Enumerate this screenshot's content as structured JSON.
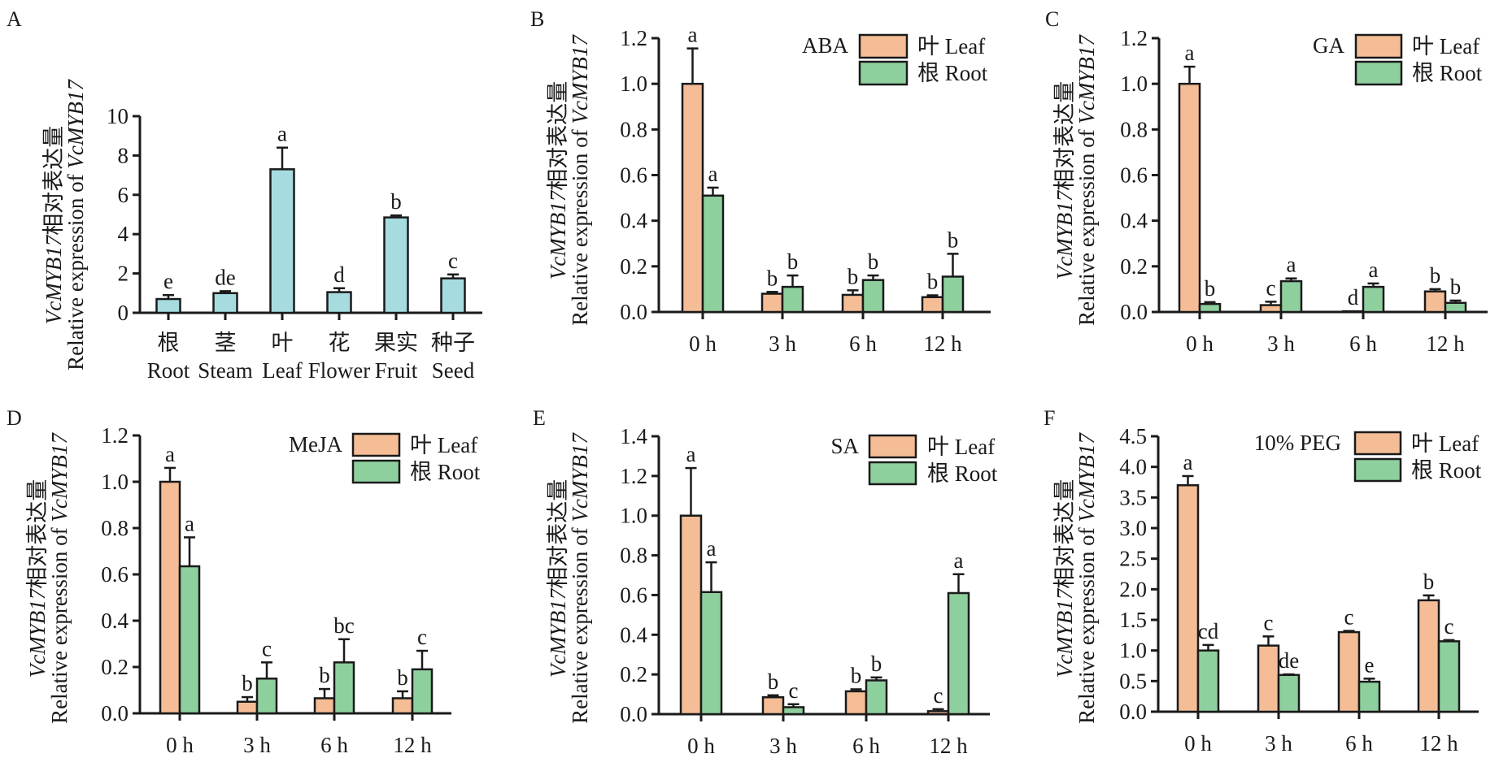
{
  "figure": {
    "panel_letters": [
      "A",
      "B",
      "C",
      "D",
      "E",
      "F"
    ],
    "ylabel_line1_italic": "VcMYB17",
    "ylabel_line1_cn": "相对表达量",
    "ylabel_line2_prefix": "Relative expression of ",
    "ylabel_line2_italic": "VcMYB17",
    "legend": [
      {
        "label": "叶 Leaf",
        "color": "#F5BD95"
      },
      {
        "label": "根 Root",
        "color": "#8ECF9E"
      }
    ]
  },
  "chart_data": [
    {
      "panel": "A",
      "type": "bar",
      "title": "",
      "categories": [
        "Root",
        "Steam",
        "Leaf",
        "Flower",
        "Fruit",
        "Seed"
      ],
      "categories_cn": [
        "根",
        "茎",
        "叶",
        "花",
        "果实",
        "种子"
      ],
      "series": [
        {
          "name": "Relative expression",
          "color": "#A6DCE0",
          "values": [
            0.7,
            1.0,
            7.3,
            1.05,
            4.85,
            1.75
          ],
          "errors": [
            0.2,
            0.1,
            1.1,
            0.2,
            0.1,
            0.2
          ],
          "letters": [
            "e",
            "de",
            "a",
            "d",
            "b",
            "c"
          ]
        }
      ],
      "ylim": [
        0,
        10
      ],
      "yticks": [
        "0",
        "2",
        "4",
        "6",
        "8",
        "10"
      ],
      "ylabel": "VcMYB17相对表达量 / Relative expression of VcMYB17",
      "xlabel": "",
      "grid": false
    },
    {
      "panel": "B",
      "type": "bar",
      "treatment": "ABA",
      "categories": [
        "0 h",
        "3 h",
        "6 h",
        "12 h"
      ],
      "series": [
        {
          "name": "叶 Leaf",
          "color": "#F5BD95",
          "values": [
            1.0,
            0.08,
            0.075,
            0.065
          ],
          "errors": [
            0.155,
            0.008,
            0.02,
            0.008
          ],
          "letters": [
            "a",
            "b",
            "b",
            "b"
          ]
        },
        {
          "name": "根 Root",
          "color": "#8ECF9E",
          "values": [
            0.51,
            0.11,
            0.14,
            0.155
          ],
          "errors": [
            0.035,
            0.05,
            0.02,
            0.1
          ],
          "letters": [
            "a",
            "b",
            "b",
            "b"
          ]
        }
      ],
      "ylim": [
        0,
        1.2
      ],
      "yticks": [
        "0.0",
        "0.2",
        "0.4",
        "0.6",
        "0.8",
        "1.0",
        "1.2"
      ],
      "legend_position": "top-right",
      "grid": false
    },
    {
      "panel": "C",
      "type": "bar",
      "treatment": "GA",
      "categories": [
        "0 h",
        "3 h",
        "6 h",
        "12 h"
      ],
      "series": [
        {
          "name": "叶 Leaf",
          "color": "#F5BD95",
          "values": [
            1.0,
            0.03,
            0.003,
            0.09
          ],
          "errors": [
            0.075,
            0.015,
            0.0,
            0.01
          ],
          "letters": [
            "a",
            "c",
            "d",
            "b"
          ]
        },
        {
          "name": "根 Root",
          "color": "#8ECF9E",
          "values": [
            0.035,
            0.135,
            0.11,
            0.04
          ],
          "errors": [
            0.008,
            0.012,
            0.015,
            0.01
          ],
          "letters": [
            "b",
            "a",
            "a",
            "b"
          ]
        }
      ],
      "ylim": [
        0,
        1.2
      ],
      "yticks": [
        "0.0",
        "0.2",
        "0.4",
        "0.6",
        "0.8",
        "1.0",
        "1.2"
      ],
      "legend_position": "top-right",
      "grid": false
    },
    {
      "panel": "D",
      "type": "bar",
      "treatment": "MeJA",
      "categories": [
        "0 h",
        "3 h",
        "6 h",
        "12 h"
      ],
      "series": [
        {
          "name": "叶 Leaf",
          "color": "#F5BD95",
          "values": [
            1.0,
            0.05,
            0.065,
            0.065
          ],
          "errors": [
            0.06,
            0.02,
            0.04,
            0.03
          ],
          "letters": [
            "a",
            "b",
            "b",
            "b"
          ]
        },
        {
          "name": "根 Root",
          "color": "#8ECF9E",
          "values": [
            0.635,
            0.15,
            0.22,
            0.19
          ],
          "errors": [
            0.125,
            0.07,
            0.1,
            0.08
          ],
          "letters": [
            "a",
            "c",
            "bc",
            "c"
          ]
        }
      ],
      "ylim": [
        0,
        1.2
      ],
      "yticks": [
        "0.0",
        "0.2",
        "0.4",
        "0.6",
        "0.8",
        "1.0",
        "1.2"
      ],
      "legend_position": "top-right",
      "grid": false
    },
    {
      "panel": "E",
      "type": "bar",
      "treatment": "SA",
      "categories": [
        "0 h",
        "3 h",
        "6 h",
        "12 h"
      ],
      "series": [
        {
          "name": "叶 Leaf",
          "color": "#F5BD95",
          "values": [
            1.0,
            0.085,
            0.115,
            0.015
          ],
          "errors": [
            0.24,
            0.01,
            0.01,
            0.01
          ],
          "letters": [
            "a",
            "b",
            "b",
            "c"
          ]
        },
        {
          "name": "根 Root",
          "color": "#8ECF9E",
          "values": [
            0.615,
            0.035,
            0.17,
            0.61
          ],
          "errors": [
            0.15,
            0.015,
            0.015,
            0.095
          ],
          "letters": [
            "a",
            "c",
            "b",
            "a"
          ]
        }
      ],
      "ylim": [
        0,
        1.4
      ],
      "yticks": [
        "0.0",
        "0.2",
        "0.4",
        "0.6",
        "0.8",
        "1.0",
        "1.2",
        "1.4"
      ],
      "legend_position": "top-right",
      "grid": false
    },
    {
      "panel": "F",
      "type": "bar",
      "treatment": "10% PEG",
      "categories": [
        "0 h",
        "3 h",
        "6 h",
        "12 h"
      ],
      "series": [
        {
          "name": "叶 Leaf",
          "color": "#F5BD95",
          "values": [
            3.7,
            1.08,
            1.3,
            1.82
          ],
          "errors": [
            0.15,
            0.15,
            0.02,
            0.08
          ],
          "letters": [
            "a",
            "c",
            "c",
            "b"
          ]
        },
        {
          "name": "根 Root",
          "color": "#8ECF9E",
          "values": [
            1.0,
            0.6,
            0.49,
            1.15
          ],
          "errors": [
            0.09,
            0.01,
            0.05,
            0.02
          ],
          "letters": [
            "cd",
            "de",
            "e",
            "c"
          ]
        }
      ],
      "ylim": [
        0,
        4.5
      ],
      "yticks": [
        "0.0",
        "0.5",
        "1.0",
        "1.5",
        "2.0",
        "2.5",
        "3.0",
        "3.5",
        "4.0",
        "4.5"
      ],
      "legend_position": "top-right",
      "grid": false
    }
  ]
}
